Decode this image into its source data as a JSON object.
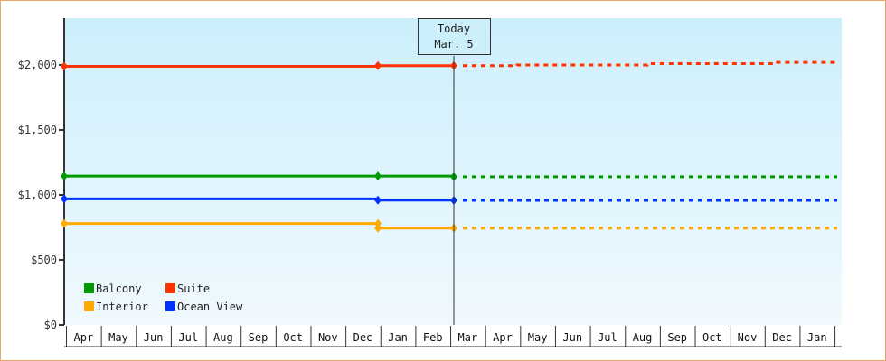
{
  "chart_data": {
    "type": "line",
    "title": "",
    "xlabel": "",
    "ylabel": "",
    "ylim": [
      0,
      2360
    ],
    "y_ticks": [
      "$0",
      "$500",
      "$1,000",
      "$1,500",
      "$2,000"
    ],
    "y_tick_values": [
      0,
      500,
      1000,
      1500,
      2000
    ],
    "categories": [
      "Apr",
      "May",
      "Jun",
      "Jul",
      "Aug",
      "Sep",
      "Oct",
      "Nov",
      "Dec",
      "Jan",
      "Feb",
      "Mar",
      "Apr",
      "May",
      "Jun",
      "Jul",
      "Aug",
      "Sep",
      "Oct",
      "Nov",
      "Dec",
      "Jan"
    ],
    "today_marker": {
      "label_line1": "Today",
      "label_line2": "Mar. 5",
      "month_index": 11
    },
    "legend_position": "bottom-left inside",
    "grid": false,
    "series": [
      {
        "name": "Suite",
        "color": "#ff3300",
        "history": [
          {
            "x": "Apr",
            "y": 1990
          },
          {
            "x": "Dec",
            "y": 1995
          },
          {
            "x": "Mar (today)",
            "y": 1995
          }
        ],
        "forecast": [
          {
            "x": "Mar",
            "y": 1995
          },
          {
            "x": "Apr",
            "y": 2000
          },
          {
            "x": "Aug",
            "y": 2010
          },
          {
            "x": "Dec",
            "y": 2020
          },
          {
            "x": "Jan",
            "y": 2020
          }
        ]
      },
      {
        "name": "Balcony",
        "color": "#009900",
        "history": [
          {
            "x": "Apr",
            "y": 1145
          },
          {
            "x": "Dec",
            "y": 1145
          },
          {
            "x": "Mar (today)",
            "y": 1140
          }
        ],
        "forecast": [
          {
            "x": "Mar",
            "y": 1140
          },
          {
            "x": "Jan",
            "y": 1140
          }
        ]
      },
      {
        "name": "Ocean View",
        "color": "#0033ff",
        "history": [
          {
            "x": "Apr",
            "y": 970
          },
          {
            "x": "Dec",
            "y": 960
          },
          {
            "x": "Mar (today)",
            "y": 958
          }
        ],
        "forecast": [
          {
            "x": "Mar",
            "y": 958
          },
          {
            "x": "Jan",
            "y": 958
          }
        ]
      },
      {
        "name": "Interior",
        "color": "#ffaa00",
        "history": [
          {
            "x": "Apr",
            "y": 780
          },
          {
            "x": "Dec",
            "y": 780
          },
          {
            "x": "Dec",
            "y": 745
          },
          {
            "x": "Mar (today)",
            "y": 745
          }
        ],
        "forecast": [
          {
            "x": "Mar",
            "y": 745
          },
          {
            "x": "Jan",
            "y": 745
          }
        ]
      }
    ]
  },
  "legend": {
    "items": [
      {
        "label": "Balcony",
        "color": "#009900"
      },
      {
        "label": "Suite",
        "color": "#ff3300"
      },
      {
        "label": "Interior",
        "color": "#ffaa00"
      },
      {
        "label": "Ocean View",
        "color": "#0033ff"
      }
    ]
  },
  "colors": {
    "frame_border": "#e8a868",
    "plot_bg_top": "#cceffc",
    "plot_bg_bottom": "#f0f9fe",
    "axis": "#333333"
  }
}
